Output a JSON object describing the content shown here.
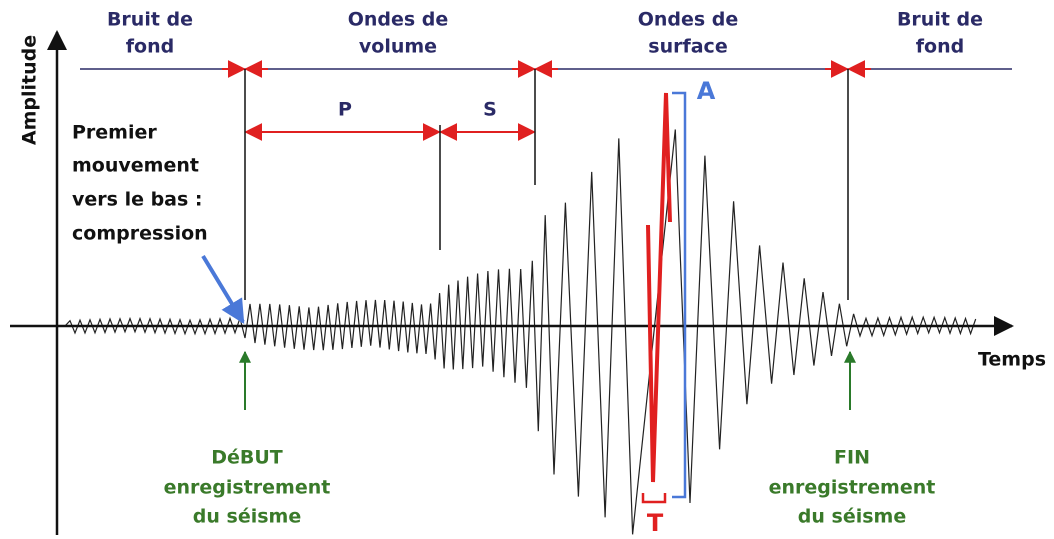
{
  "axes": {
    "y_label": "Amplitude",
    "x_label": "Temps"
  },
  "phases": [
    {
      "label": [
        "Bruit de",
        "fond"
      ]
    },
    {
      "label": [
        "Ondes de",
        "volume"
      ]
    },
    {
      "label": [
        "Ondes de",
        "surface"
      ]
    },
    {
      "label": [
        "Bruit de",
        "fond"
      ]
    }
  ],
  "waves": {
    "p": "P",
    "s": "S"
  },
  "measures": {
    "amplitude": "A",
    "period": "T"
  },
  "first_motion": {
    "lines": [
      "Premier",
      "mouvement",
      "vers le bas :",
      "compression"
    ]
  },
  "start": {
    "lines": [
      "DéBUT",
      "enregistrement",
      "du séisme"
    ]
  },
  "end": {
    "lines": [
      "FIN",
      "enregistrement",
      "du séisme"
    ]
  }
}
